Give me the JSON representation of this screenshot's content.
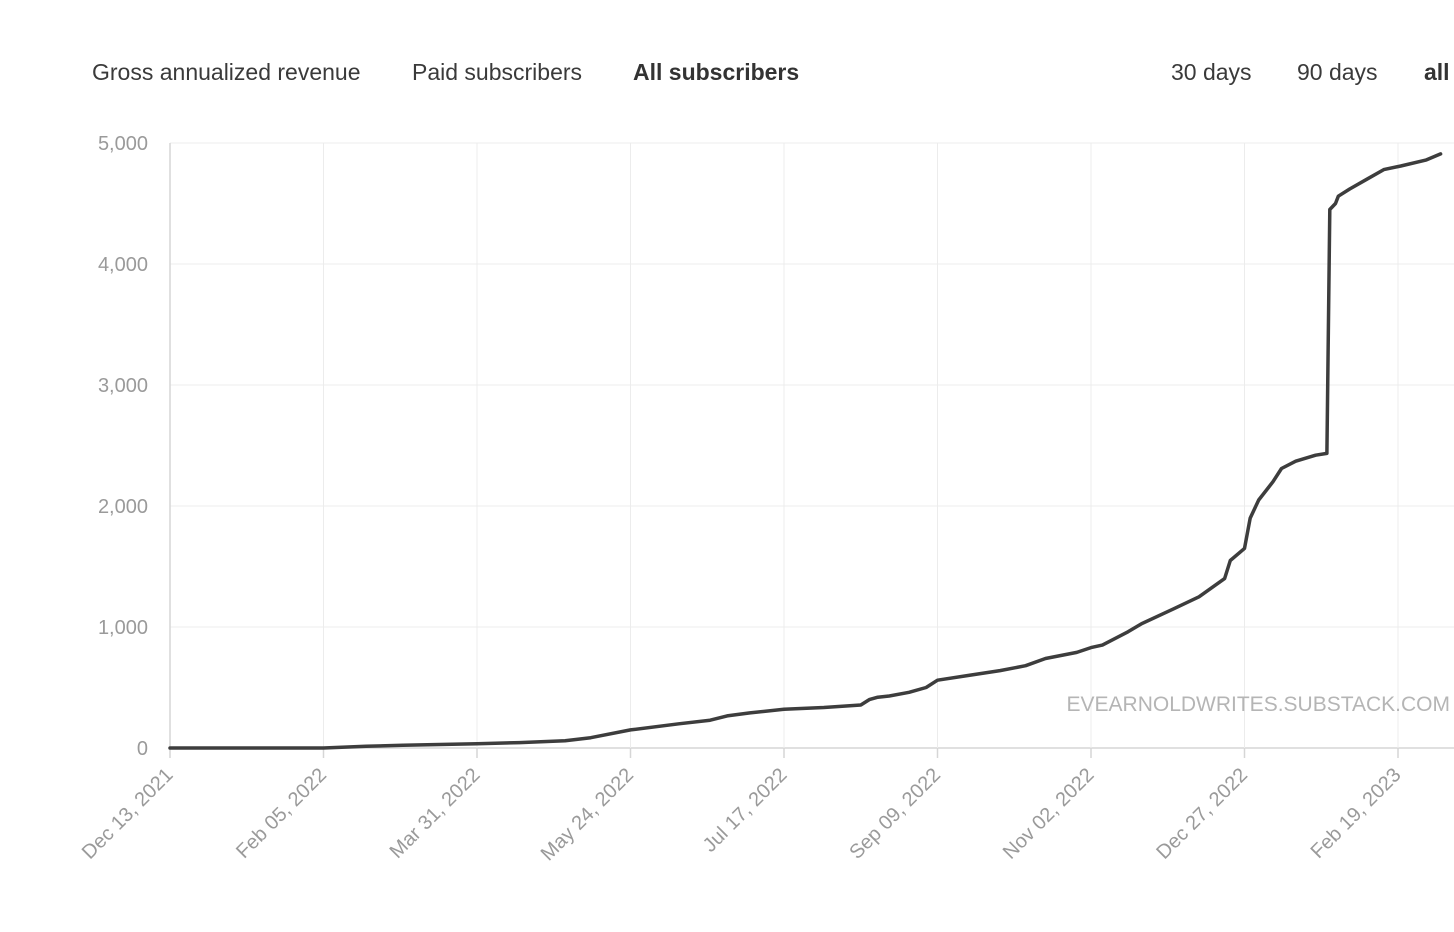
{
  "tabs": {
    "metrics": [
      {
        "label": "Gross annualized revenue",
        "active": false
      },
      {
        "label": "Paid subscribers",
        "active": false
      },
      {
        "label": "All subscribers",
        "active": true
      }
    ],
    "ranges": [
      {
        "label": "30 days",
        "active": false
      },
      {
        "label": "90 days",
        "active": false
      },
      {
        "label": "all",
        "active": true
      }
    ]
  },
  "colors": {
    "line": "#3d3d3d",
    "grid": "#ececec",
    "axis": "#d6d6d6",
    "tick_text": "#9a9a9a",
    "watermark": "#b5b5b5"
  },
  "chart_data": {
    "type": "line",
    "title": "",
    "xlabel": "",
    "ylabel": "",
    "watermark": "EVEARNOLDWRITES.SUBSTACK.COM",
    "x_ticks": [
      "Dec 13, 2021",
      "Feb 05, 2022",
      "Mar 31, 2022",
      "May 24, 2022",
      "Jul 17, 2022",
      "Sep 09, 2022",
      "Nov 02, 2022",
      "Dec 27, 2022",
      "Feb 19, 2023"
    ],
    "y_ticks": [
      "0",
      "1,000",
      "2,000",
      "3,000",
      "4,000",
      "5,000"
    ],
    "ylim": [
      0,
      5000
    ],
    "xlim": [
      "2021-12-13",
      "2023-03-05"
    ],
    "grid": true,
    "series": [
      {
        "points": [
          [
            "2021-12-13",
            0
          ],
          [
            "2022-01-15",
            0
          ],
          [
            "2022-02-05",
            0
          ],
          [
            "2022-02-20",
            15
          ],
          [
            "2022-03-05",
            22
          ],
          [
            "2022-03-20",
            30
          ],
          [
            "2022-03-31",
            35
          ],
          [
            "2022-04-15",
            45
          ],
          [
            "2022-05-01",
            60
          ],
          [
            "2022-05-10",
            85
          ],
          [
            "2022-05-24",
            150
          ],
          [
            "2022-06-10",
            200
          ],
          [
            "2022-06-21",
            230
          ],
          [
            "2022-06-27",
            265
          ],
          [
            "2022-07-05",
            290
          ],
          [
            "2022-07-17",
            320
          ],
          [
            "2022-07-31",
            335
          ],
          [
            "2022-08-13",
            355
          ],
          [
            "2022-08-16",
            400
          ],
          [
            "2022-08-19",
            420
          ],
          [
            "2022-08-23",
            430
          ],
          [
            "2022-08-30",
            460
          ],
          [
            "2022-09-05",
            500
          ],
          [
            "2022-09-09",
            560
          ],
          [
            "2022-09-20",
            600
          ],
          [
            "2022-10-01",
            640
          ],
          [
            "2022-10-10",
            680
          ],
          [
            "2022-10-17",
            740
          ],
          [
            "2022-10-28",
            790
          ],
          [
            "2022-11-02",
            830
          ],
          [
            "2022-11-06",
            850
          ],
          [
            "2022-11-15",
            960
          ],
          [
            "2022-11-20",
            1030
          ],
          [
            "2022-12-01",
            1150
          ],
          [
            "2022-12-10",
            1250
          ],
          [
            "2022-12-19",
            1400
          ],
          [
            "2022-12-21",
            1550
          ],
          [
            "2022-12-26",
            1650
          ],
          [
            "2022-12-28",
            1900
          ],
          [
            "2022-12-31",
            2050
          ],
          [
            "2023-01-05",
            2200
          ],
          [
            "2023-01-08",
            2310
          ],
          [
            "2023-01-13",
            2370
          ],
          [
            "2023-01-20",
            2420
          ],
          [
            "2023-01-24",
            2435
          ],
          [
            "2023-01-25",
            4450
          ],
          [
            "2023-01-27",
            4500
          ],
          [
            "2023-01-28",
            4560
          ],
          [
            "2023-02-01",
            4620
          ],
          [
            "2023-02-07",
            4700
          ],
          [
            "2023-02-13",
            4780
          ],
          [
            "2023-02-19",
            4810
          ],
          [
            "2023-02-28",
            4860
          ],
          [
            "2023-03-05",
            4910
          ]
        ]
      }
    ]
  }
}
